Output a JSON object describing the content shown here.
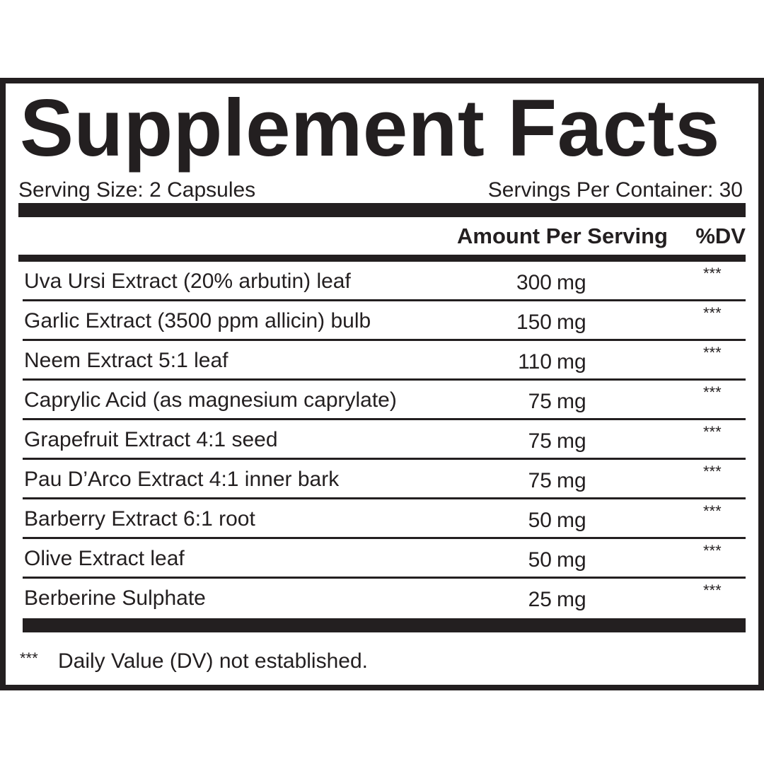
{
  "title": "Supplement Facts",
  "serving_size": "Serving Size: 2 Capsules",
  "servings_per_container": "Servings Per Container: 30",
  "header": {
    "amount": "Amount Per Serving",
    "dv": "%DV"
  },
  "ingredients": [
    {
      "name": "Uva Ursi Extract (20% arbutin) leaf",
      "amount": "300",
      "unit": "mg",
      "dv": "***"
    },
    {
      "name": "Garlic Extract (3500 ppm allicin) bulb",
      "amount": "150",
      "unit": "mg",
      "dv": "***"
    },
    {
      "name": "Neem Extract 5:1 leaf",
      "amount": "110",
      "unit": "mg",
      "dv": "***"
    },
    {
      "name": "Caprylic Acid (as magnesium caprylate)",
      "amount": "75",
      "unit": "mg",
      "dv": "***"
    },
    {
      "name": "Grapefruit Extract 4:1 seed",
      "amount": "75",
      "unit": "mg",
      "dv": "***"
    },
    {
      "name": "Pau D’Arco Extract 4:1 inner bark",
      "amount": "75",
      "unit": "mg",
      "dv": "***"
    },
    {
      "name": "Barberry Extract 6:1 root",
      "amount": "50",
      "unit": "mg",
      "dv": "***"
    },
    {
      "name": "Olive Extract leaf",
      "amount": "50",
      "unit": "mg",
      "dv": "***"
    },
    {
      "name": "Berberine Sulphate",
      "amount": "25",
      "unit": "mg",
      "dv": "***"
    }
  ],
  "footnote": {
    "marker": "***",
    "text": "Daily Value (DV) not established."
  }
}
